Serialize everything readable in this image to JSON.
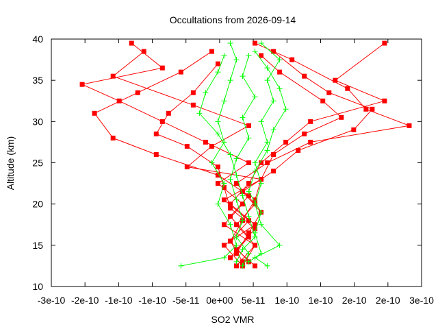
{
  "chart_data": {
    "type": "scatter",
    "title": "Occultations from 2026-09-14",
    "xlabel": "SO2 VMR",
    "ylabel": "Altitude (km)",
    "xlim": [
      -3e-10,
      3e-10
    ],
    "ylim": [
      10,
      40
    ],
    "x_tick_labels": [
      "-3e-10",
      "-2e-10",
      "-1e-10",
      "-1e-10",
      "-5e-11",
      "0e+00",
      "5e-11",
      "1e-10",
      "1e-10",
      "2e-10",
      "2e-10",
      "3e-10"
    ],
    "y_ticks": [
      10,
      15,
      20,
      25,
      30,
      35,
      40
    ],
    "grid": false,
    "legend": "none",
    "series_red": {
      "color": "#ff0000",
      "marker": "square",
      "profiles": [
        [
          [
            1e-11,
            12.5
          ],
          [
            -2e-11,
            15
          ],
          [
            3e-11,
            17.5
          ],
          [
            -1e-11,
            20
          ],
          [
            2e-11,
            22.5
          ],
          [
            4e-11,
            25
          ],
          [
            8e-11,
            27.5
          ],
          [
            1.2e-10,
            30
          ],
          [
            2.4e-10,
            32.5
          ],
          [
            1.6e-10,
            35
          ],
          [
            2.4e-10,
            39.5
          ]
        ],
        [
          [
            0,
            12.5
          ],
          [
            3e-11,
            15
          ],
          [
            -2e-11,
            17.5
          ],
          [
            1e-11,
            20
          ],
          [
            -3e-11,
            22.5
          ],
          [
            2e-11,
            25
          ],
          [
            -5e-11,
            27.5
          ],
          [
            -1.2e-10,
            30
          ],
          [
            -1.9e-10,
            32.5
          ],
          [
            -2.5e-10,
            34.5
          ],
          [
            -1.2e-10,
            36.5
          ],
          [
            -1.7e-10,
            39.5
          ]
        ],
        [
          [
            2e-11,
            13
          ],
          [
            -1e-11,
            15.5
          ],
          [
            2e-11,
            18
          ],
          [
            -2e-11,
            20.5
          ],
          [
            4e-11,
            23
          ],
          [
            -8e-11,
            24.5
          ],
          [
            -4e-11,
            27
          ],
          [
            2e-11,
            29.5
          ],
          [
            -7e-11,
            32
          ],
          [
            -2e-10,
            35.5
          ],
          [
            -1.5e-10,
            38.5
          ]
        ],
        [
          [
            1e-11,
            12.5
          ],
          [
            3e-11,
            15
          ],
          [
            0,
            17.5
          ],
          [
            3e-11,
            20
          ],
          [
            0,
            22.5
          ],
          [
            5e-11,
            25
          ],
          [
            1.2e-10,
            27.5
          ],
          [
            2.8e-10,
            29.5
          ],
          [
            2.1e-10,
            31.5
          ],
          [
            1.8e-10,
            34
          ],
          [
            9e-11,
            37.5
          ],
          [
            3e-11,
            39.5
          ]
        ],
        [
          [
            -1e-11,
            13.5
          ],
          [
            2e-11,
            16
          ],
          [
            -1e-11,
            18.5
          ],
          [
            2e-11,
            21
          ],
          [
            -3e-11,
            23.5
          ],
          [
            -1.3e-10,
            26
          ],
          [
            -2e-10,
            28
          ],
          [
            -2.3e-10,
            31
          ],
          [
            -1.6e-10,
            33.5
          ],
          [
            -9e-11,
            36
          ],
          [
            -4e-11,
            38.5
          ]
        ],
        [
          [
            0,
            14
          ],
          [
            2e-11,
            16.5
          ],
          [
            4e-11,
            19
          ],
          [
            1e-11,
            21.5
          ],
          [
            6e-11,
            24
          ],
          [
            1e-10,
            26.5
          ],
          [
            1.9e-10,
            29
          ],
          [
            2.2e-10,
            31.5
          ],
          [
            1.5e-10,
            33.5
          ],
          [
            1.1e-10,
            35.5
          ],
          [
            6e-11,
            38.5
          ]
        ],
        [
          [
            3e-11,
            12.5
          ],
          [
            0,
            14.5
          ],
          [
            3e-11,
            17
          ],
          [
            -1e-11,
            19.5
          ],
          [
            -2e-11,
            22
          ],
          [
            -3e-11,
            24.5
          ],
          [
            -8e-11,
            27
          ],
          [
            -1.3e-10,
            28.5
          ],
          [
            -1.1e-10,
            31
          ],
          [
            -7e-11,
            33.5
          ],
          [
            -3e-11,
            37
          ]
        ],
        [
          [
            1e-11,
            13
          ],
          [
            -1e-11,
            15.5
          ],
          [
            1e-11,
            18
          ],
          [
            3e-11,
            20.5
          ],
          [
            4e-11,
            23
          ],
          [
            6e-11,
            26
          ],
          [
            1.1e-10,
            28.5
          ],
          [
            1.7e-10,
            30.5
          ],
          [
            1.4e-10,
            32.5
          ],
          [
            7e-11,
            36
          ],
          [
            4e-11,
            38
          ]
        ]
      ]
    },
    "series_green": {
      "color": "#00ff00",
      "marker": "plus",
      "profiles": [
        [
          [
            -9e-11,
            12.5
          ],
          [
            -2e-11,
            13.5
          ],
          [
            0,
            15
          ],
          [
            -1e-11,
            17.5
          ],
          [
            -3e-11,
            20
          ],
          [
            -2e-11,
            22.5
          ],
          [
            -4e-11,
            25
          ],
          [
            -2e-11,
            27.5
          ],
          [
            -3e-11,
            30
          ],
          [
            -2e-11,
            32.5
          ],
          [
            -1e-11,
            35
          ],
          [
            0,
            37.5
          ],
          [
            -1e-11,
            39.5
          ]
        ],
        [
          [
            5e-11,
            12.5
          ],
          [
            3e-11,
            13.5
          ],
          [
            7e-11,
            15
          ],
          [
            4e-11,
            17.5
          ],
          [
            3e-11,
            20
          ],
          [
            4e-11,
            22.5
          ],
          [
            3e-11,
            25
          ],
          [
            5e-11,
            27.5
          ],
          [
            4e-11,
            30
          ],
          [
            6e-11,
            32.5
          ],
          [
            5e-11,
            35
          ],
          [
            7e-11,
            37.5
          ],
          [
            4e-11,
            39.5
          ]
        ],
        [
          [
            0,
            13
          ],
          [
            1e-11,
            14.5
          ],
          [
            3e-11,
            16
          ],
          [
            2e-11,
            18.5
          ],
          [
            1e-11,
            21
          ],
          [
            0,
            23.5
          ],
          [
            -1e-11,
            26
          ],
          [
            -3e-11,
            28.5
          ],
          [
            -6e-11,
            31
          ],
          [
            -5e-11,
            33.5
          ],
          [
            -3e-11,
            36
          ],
          [
            -2e-11,
            38
          ]
        ],
        [
          [
            2e-11,
            13
          ],
          [
            4e-11,
            14
          ],
          [
            3e-11,
            16.5
          ],
          [
            4e-11,
            19
          ],
          [
            2e-11,
            21.5
          ],
          [
            3e-11,
            24
          ],
          [
            5e-11,
            26.5
          ],
          [
            6e-11,
            29
          ],
          [
            8e-11,
            31.5
          ],
          [
            7e-11,
            34
          ],
          [
            5e-11,
            36.5
          ],
          [
            3e-11,
            38.5
          ]
        ],
        [
          [
            1e-11,
            12.5
          ],
          [
            2e-11,
            14
          ],
          [
            0,
            16
          ],
          [
            1e-11,
            18
          ],
          [
            0,
            20.5
          ],
          [
            -1e-11,
            23
          ],
          [
            0,
            25.5
          ],
          [
            2e-11,
            28
          ],
          [
            1e-11,
            30.5
          ],
          [
            3e-11,
            33
          ],
          [
            1e-11,
            35.5
          ],
          [
            2e-11,
            38
          ]
        ]
      ]
    }
  }
}
